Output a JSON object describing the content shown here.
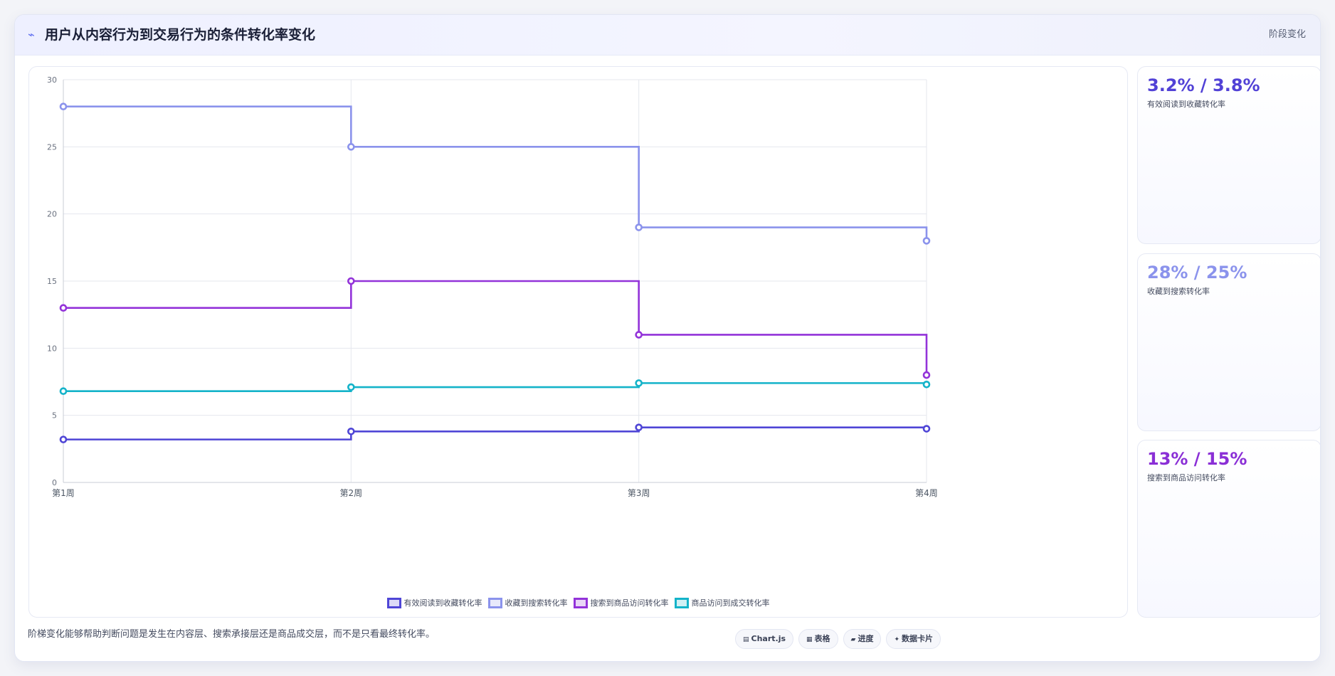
{
  "header": {
    "icon": "trend-icon",
    "title": "用户从内容行为到交易行为的条件转化率变化",
    "right_label": "阶段变化"
  },
  "chart_data": {
    "type": "line",
    "step": true,
    "categories": [
      "第1周",
      "第2周",
      "第3周",
      "第4周"
    ],
    "ylim": [
      0,
      30
    ],
    "yticks": [
      0,
      5,
      10,
      15,
      20,
      25,
      30
    ],
    "grid": true,
    "legend_position": "bottom",
    "series": [
      {
        "name": "有效阅读到收藏转化率",
        "color": "#4f46d6",
        "values": [
          3.2,
          3.8,
          4.1,
          4.0
        ]
      },
      {
        "name": "收藏到搜索转化率",
        "color": "#8b93ec",
        "values": [
          28,
          25,
          19,
          18
        ]
      },
      {
        "name": "搜索到商品访问转化率",
        "color": "#9333d9",
        "values": [
          13,
          15,
          11,
          8
        ]
      },
      {
        "name": "商品访问到成交转化率",
        "color": "#14b3c9",
        "values": [
          6.8,
          7.1,
          7.4,
          7.3
        ]
      }
    ]
  },
  "stats": [
    {
      "value": "3.2% / 3.8%",
      "label": "有效阅读到收藏转化率",
      "color": "#5141d6"
    },
    {
      "value": "28% / 25%",
      "label": "收藏到搜索转化率",
      "color": "#8b93ec"
    },
    {
      "value": "13% / 15%",
      "label": "搜索到商品访问转化率",
      "color": "#8a2fd6"
    }
  ],
  "footer": {
    "note": "阶梯变化能够帮助判断问题是发生在内容层、搜索承接层还是商品成交层，而不是只看最终转化率。",
    "chips": [
      {
        "icon": "▤",
        "icon_name": "chart-icon",
        "label": "Chart.js"
      },
      {
        "icon": "▦",
        "icon_name": "table-icon",
        "label": "表格"
      },
      {
        "icon": "▰",
        "icon_name": "progress-icon",
        "label": "进度"
      },
      {
        "icon": "✦",
        "icon_name": "card-icon",
        "label": "数据卡片"
      }
    ]
  }
}
